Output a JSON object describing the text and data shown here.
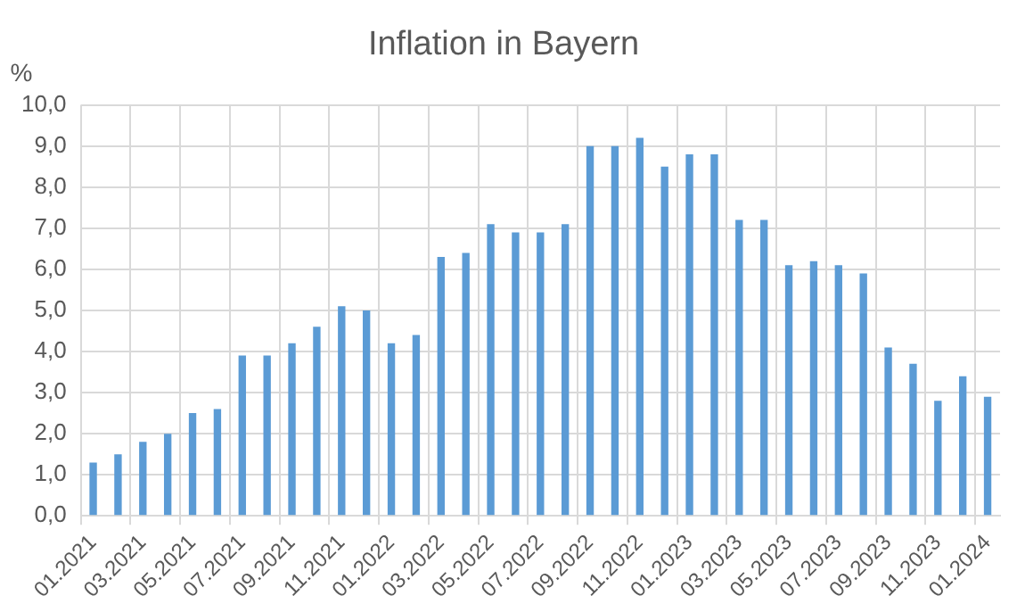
{
  "chart_data": {
    "type": "bar",
    "title": "Inflation in Bayern",
    "ylabel": "%",
    "categories": [
      "01.2021",
      null,
      "03.2021",
      null,
      "05.2021",
      null,
      "07.2021",
      null,
      "09.2021",
      null,
      "11.2021",
      null,
      "01.2022",
      null,
      "03.2022",
      null,
      "05.2022",
      null,
      "07.2022",
      null,
      "09.2022",
      null,
      "11.2022",
      null,
      "01.2023",
      null,
      "03.2023",
      null,
      "05.2023",
      null,
      "07.2023",
      null,
      "09.2023",
      null,
      "11.2023",
      null,
      "01.2024"
    ],
    "values": [
      1.3,
      1.5,
      1.8,
      2.0,
      2.5,
      2.6,
      3.9,
      3.9,
      4.2,
      4.6,
      5.1,
      5.0,
      4.2,
      4.4,
      6.3,
      6.4,
      7.1,
      6.9,
      6.9,
      7.1,
      9.0,
      9.0,
      9.2,
      8.5,
      8.8,
      8.8,
      7.2,
      7.2,
      6.1,
      6.2,
      6.1,
      5.9,
      4.1,
      3.7,
      2.8,
      3.4,
      2.9
    ],
    "color": "#5b9bd5",
    "ylim": [
      0,
      10
    ],
    "yticks": [
      {
        "value": 0,
        "label": "0,0"
      },
      {
        "value": 1,
        "label": "1,0"
      },
      {
        "value": 2,
        "label": "2,0"
      },
      {
        "value": 3,
        "label": "3,0"
      },
      {
        "value": 4,
        "label": "4,0"
      },
      {
        "value": 5,
        "label": "5,0"
      },
      {
        "value": 6,
        "label": "6,0"
      },
      {
        "value": 7,
        "label": "7,0"
      },
      {
        "value": 8,
        "label": "8,0"
      },
      {
        "value": 9,
        "label": "9,0"
      },
      {
        "value": 10,
        "label": "10,0"
      }
    ],
    "grid": true,
    "legend": false
  }
}
